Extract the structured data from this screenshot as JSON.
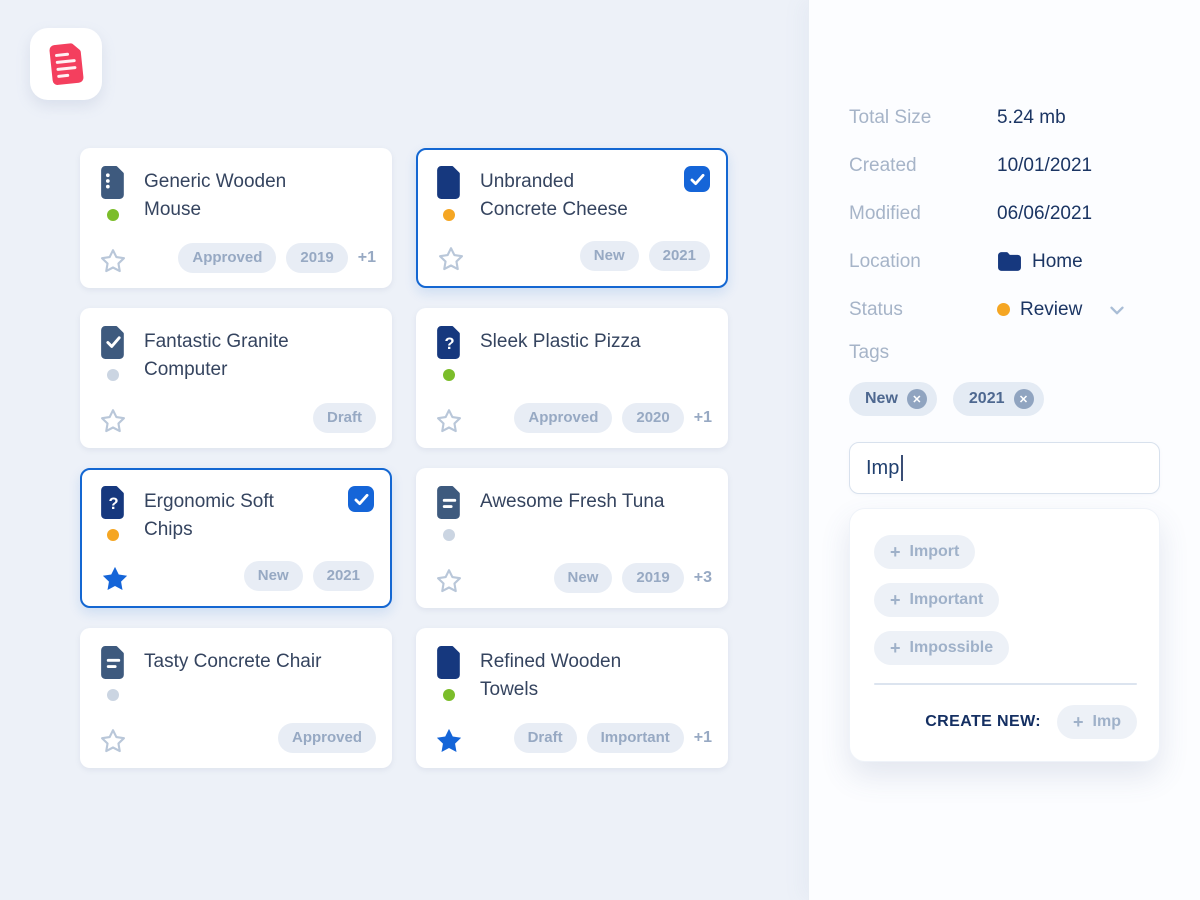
{
  "icons": {
    "plus": "+",
    "remove": "✕"
  },
  "colors": {
    "accent": "#1565D8",
    "selected_border": "#1467D2",
    "green_dot": "#7BBD2A",
    "orange_dot": "#F5A623",
    "gray_dot": "#CBD5E2",
    "navy_icon": "#16387E",
    "slate_icon": "#3E5A7E"
  },
  "files": [
    {
      "title": "Generic Wooden\nMouse",
      "icon": "doc-dots",
      "icon_color": "#3E5A7E",
      "dot_color": "#7BBD2A",
      "starred": false,
      "selected": false,
      "badges": [
        "Approved",
        "2019"
      ],
      "more": "+1"
    },
    {
      "title": "Unbranded\nConcrete Cheese",
      "icon": "doc-solid",
      "icon_color": "#16387E",
      "dot_color": "#F5A623",
      "starred": false,
      "selected": true,
      "badges": [
        "New",
        "2021"
      ],
      "more": ""
    },
    {
      "title": "Fantastic Granite\nComputer",
      "icon": "doc-check",
      "icon_color": "#3E5A7E",
      "dot_color": "#CBD5E2",
      "starred": false,
      "selected": false,
      "badges": [
        "Draft"
      ],
      "more": ""
    },
    {
      "title": "Sleek Plastic Pizza",
      "icon": "doc-question",
      "icon_color": "#16387E",
      "dot_color": "#7BBD2A",
      "starred": false,
      "selected": false,
      "badges": [
        "Approved",
        "2020"
      ],
      "more": "+1"
    },
    {
      "title": "Ergonomic Soft\nChips",
      "icon": "doc-question",
      "icon_color": "#16387E",
      "dot_color": "#F5A623",
      "starred": true,
      "selected": true,
      "badges": [
        "New",
        "2021"
      ],
      "more": ""
    },
    {
      "title": "Awesome Fresh Tuna",
      "icon": "doc-lines",
      "icon_color": "#3E5A7E",
      "dot_color": "#CBD5E2",
      "starred": false,
      "selected": false,
      "badges": [
        "New",
        "2019"
      ],
      "more": "+3"
    },
    {
      "title": "Tasty Concrete Chair",
      "icon": "doc-lines",
      "icon_color": "#3E5A7E",
      "dot_color": "#CBD5E2",
      "starred": false,
      "selected": false,
      "badges": [
        "Approved"
      ],
      "more": ""
    },
    {
      "title": "Refined Wooden\nTowels",
      "icon": "doc-solid",
      "icon_color": "#16387E",
      "dot_color": "#7BBD2A",
      "starred": true,
      "selected": false,
      "badges": [
        "Draft",
        "Important"
      ],
      "more": "+1"
    }
  ],
  "details": {
    "rows": [
      {
        "label": "Total Size",
        "value": "5.24 mb"
      },
      {
        "label": "Created",
        "value": "10/01/2021"
      },
      {
        "label": "Modified",
        "value": "06/06/2021"
      },
      {
        "label": "Location",
        "value": "Home"
      },
      {
        "label": "Status",
        "value": "Review",
        "dot_color": "#F5A623"
      }
    ],
    "tags_label": "Tags",
    "tags": [
      "New",
      "2021"
    ],
    "input_value": "Imp",
    "suggestions": [
      "Import",
      "Important",
      "Impossible"
    ],
    "create_new_label": "CREATE NEW:",
    "create_new_value": "Imp"
  }
}
